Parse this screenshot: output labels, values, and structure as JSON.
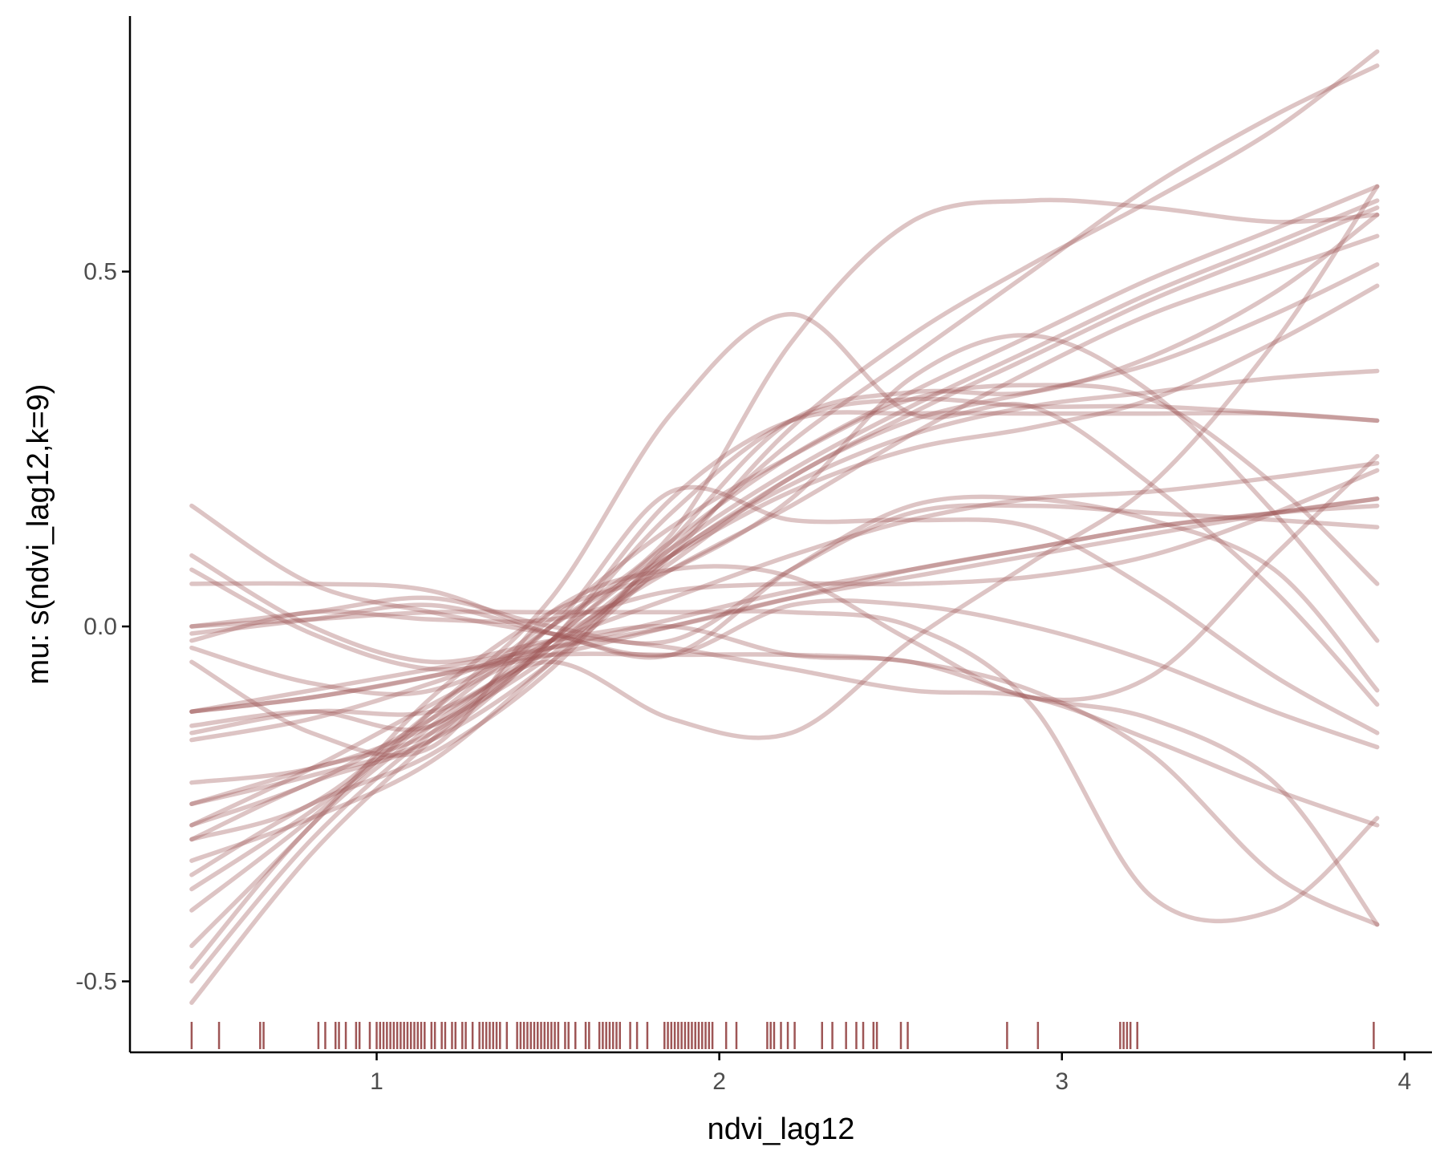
{
  "chart_data": {
    "type": "line",
    "title": "",
    "xlabel": "ndvi_lag12",
    "ylabel": "mu: s(ndvi_lag12,k=9)",
    "xlim": [
      0.28,
      4.08
    ],
    "ylim": [
      -0.6,
      0.86
    ],
    "x_ticks": [
      1,
      2,
      3,
      4
    ],
    "x_tick_labels": [
      "1",
      "2",
      "3",
      "4"
    ],
    "y_ticks": [
      -0.5,
      0.0,
      0.5
    ],
    "y_tick_labels": [
      "-0.5",
      "0.0",
      "0.5"
    ],
    "grid": false,
    "legend": "none",
    "line_color": "#9e5656",
    "line_opacity": 0.35,
    "rug_color": "#9e5656",
    "x": [
      0.46,
      0.81,
      1.16,
      1.51,
      1.86,
      2.21,
      2.56,
      2.91,
      3.26,
      3.62,
      3.92
    ],
    "series": [
      {
        "values": [
          -0.12,
          -0.1,
          -0.07,
          -0.04,
          -0.0,
          0.04,
          0.07,
          0.1,
          0.13,
          0.16,
          0.18
        ]
      },
      {
        "values": [
          -0.12,
          -0.09,
          -0.06,
          -0.03,
          0.0,
          0.04,
          0.08,
          0.11,
          0.14,
          0.16,
          0.18
        ]
      },
      {
        "values": [
          -0.12,
          -0.1,
          -0.07,
          -0.03,
          0.01,
          0.05,
          0.08,
          0.11,
          0.14,
          0.16,
          0.17
        ]
      },
      {
        "values": [
          -0.5,
          -0.3,
          -0.15,
          -0.03,
          0.1,
          0.21,
          0.3,
          0.38,
          0.46,
          0.53,
          0.59
        ]
      },
      {
        "values": [
          -0.53,
          -0.32,
          -0.16,
          -0.02,
          0.11,
          0.22,
          0.31,
          0.39,
          0.47,
          0.54,
          0.6
        ]
      },
      {
        "values": [
          -0.48,
          -0.28,
          -0.14,
          -0.02,
          0.12,
          0.24,
          0.33,
          0.41,
          0.49,
          0.56,
          0.62
        ]
      },
      {
        "values": [
          -0.28,
          -0.2,
          -0.11,
          -0.02,
          0.08,
          0.17,
          0.27,
          0.36,
          0.44,
          0.5,
          0.55
        ]
      },
      {
        "values": [
          -0.28,
          -0.22,
          -0.13,
          -0.03,
          0.09,
          0.21,
          0.29,
          0.33,
          0.37,
          0.44,
          0.51
        ]
      },
      {
        "values": [
          -0.35,
          -0.25,
          -0.18,
          -0.06,
          0.12,
          0.29,
          0.33,
          0.33,
          0.38,
          0.47,
          0.58
        ]
      },
      {
        "values": [
          -0.37,
          -0.26,
          -0.13,
          0.0,
          0.1,
          0.19,
          0.25,
          0.28,
          0.32,
          0.4,
          0.48
        ]
      },
      {
        "values": [
          -0.33,
          -0.27,
          -0.19,
          -0.05,
          0.1,
          0.2,
          0.27,
          0.31,
          0.33,
          0.35,
          0.36
        ]
      },
      {
        "values": [
          -0.3,
          -0.22,
          -0.16,
          -0.02,
          0.16,
          0.29,
          0.32,
          0.31,
          0.31,
          0.3,
          0.29
        ]
      },
      {
        "values": [
          -0.25,
          -0.2,
          -0.15,
          -0.02,
          0.18,
          0.29,
          0.3,
          0.3,
          0.3,
          0.3,
          0.29
        ]
      },
      {
        "values": [
          -0.3,
          -0.25,
          -0.12,
          0.01,
          0.14,
          0.24,
          0.32,
          0.34,
          0.32,
          0.2,
          0.06
        ]
      },
      {
        "values": [
          -0.45,
          -0.28,
          -0.1,
          0.02,
          0.08,
          0.18,
          0.35,
          0.41,
          0.33,
          0.16,
          -0.02
        ]
      },
      {
        "values": [
          -0.4,
          -0.27,
          -0.12,
          0.04,
          0.3,
          0.44,
          0.3,
          0.31,
          0.2,
          0.05,
          -0.11
        ]
      },
      {
        "values": [
          -0.03,
          -0.08,
          -0.09,
          0.0,
          0.19,
          0.15,
          0.15,
          0.14,
          0.05,
          -0.07,
          -0.15
        ]
      },
      {
        "values": [
          0.0,
          0.02,
          0.04,
          0.0,
          -0.02,
          0.08,
          0.16,
          0.17,
          0.16,
          0.15,
          0.14
        ]
      },
      {
        "values": [
          -0.01,
          0.01,
          0.03,
          -0.01,
          -0.04,
          0.08,
          0.17,
          0.18,
          0.15,
          0.08,
          -0.09
        ]
      },
      {
        "values": [
          0.1,
          0.0,
          -0.05,
          -0.02,
          0.0,
          -0.04,
          -0.05,
          -0.1,
          -0.13,
          -0.22,
          -0.42
        ]
      },
      {
        "values": [
          0.08,
          -0.01,
          -0.06,
          -0.04,
          -0.04,
          -0.04,
          -0.05,
          -0.09,
          -0.18,
          -0.35,
          -0.42
        ]
      },
      {
        "values": [
          0.17,
          0.06,
          0.02,
          -0.01,
          -0.03,
          -0.06,
          -0.09,
          -0.1,
          -0.16,
          -0.23,
          -0.28
        ]
      },
      {
        "values": [
          0.06,
          0.06,
          0.05,
          -0.01,
          -0.04,
          0.03,
          0.03,
          0.0,
          -0.05,
          -0.12,
          -0.17
        ]
      },
      {
        "values": [
          0.0,
          0.01,
          0.02,
          0.02,
          0.02,
          0.02,
          0.0,
          -0.11,
          -0.38,
          -0.4,
          -0.27
        ]
      },
      {
        "values": [
          -0.05,
          -0.15,
          -0.17,
          0.02,
          0.08,
          0.07,
          -0.02,
          -0.1,
          -0.07,
          0.1,
          0.24
        ]
      },
      {
        "values": [
          -0.15,
          -0.12,
          -0.12,
          -0.05,
          -0.13,
          -0.15,
          -0.02,
          0.09,
          0.2,
          0.4,
          0.62
        ]
      },
      {
        "values": [
          -0.14,
          -0.12,
          -0.14,
          0.0,
          0.13,
          0.4,
          0.57,
          0.6,
          0.59,
          0.57,
          0.58
        ]
      },
      {
        "values": [
          -0.25,
          -0.21,
          -0.16,
          -0.05,
          0.1,
          0.28,
          0.41,
          0.51,
          0.6,
          0.7,
          0.81
        ]
      },
      {
        "values": [
          -0.22,
          -0.2,
          -0.14,
          -0.04,
          0.11,
          0.26,
          0.38,
          0.5,
          0.62,
          0.72,
          0.79
        ]
      },
      {
        "values": [
          -0.02,
          0.02,
          0.01,
          0.01,
          0.05,
          0.06,
          0.06,
          0.07,
          0.1,
          0.16,
          0.22
        ]
      },
      {
        "values": [
          -0.16,
          -0.13,
          -0.08,
          -0.02,
          0.04,
          0.1,
          0.15,
          0.18,
          0.19,
          0.21,
          0.23
        ]
      }
    ],
    "rug": [
      0.46,
      0.54,
      0.66,
      0.67,
      0.83,
      0.85,
      0.88,
      0.89,
      0.91,
      0.94,
      0.95,
      0.98,
      1.0,
      1.01,
      1.02,
      1.03,
      1.04,
      1.05,
      1.06,
      1.07,
      1.08,
      1.09,
      1.1,
      1.11,
      1.12,
      1.13,
      1.14,
      1.16,
      1.17,
      1.19,
      1.2,
      1.22,
      1.23,
      1.25,
      1.26,
      1.28,
      1.3,
      1.31,
      1.32,
      1.33,
      1.34,
      1.35,
      1.36,
      1.38,
      1.41,
      1.42,
      1.43,
      1.44,
      1.45,
      1.46,
      1.47,
      1.48,
      1.49,
      1.5,
      1.51,
      1.52,
      1.53,
      1.55,
      1.56,
      1.58,
      1.61,
      1.62,
      1.65,
      1.66,
      1.67,
      1.68,
      1.69,
      1.7,
      1.71,
      1.74,
      1.76,
      1.79,
      1.84,
      1.85,
      1.86,
      1.87,
      1.88,
      1.89,
      1.9,
      1.91,
      1.92,
      1.93,
      1.94,
      1.95,
      1.96,
      1.97,
      1.98,
      2.02,
      2.05,
      2.14,
      2.15,
      2.16,
      2.18,
      2.2,
      2.22,
      2.3,
      2.33,
      2.37,
      2.4,
      2.42,
      2.45,
      2.46,
      2.53,
      2.55,
      2.84,
      2.93,
      3.17,
      3.18,
      3.19,
      3.2,
      3.22,
      3.91
    ]
  }
}
